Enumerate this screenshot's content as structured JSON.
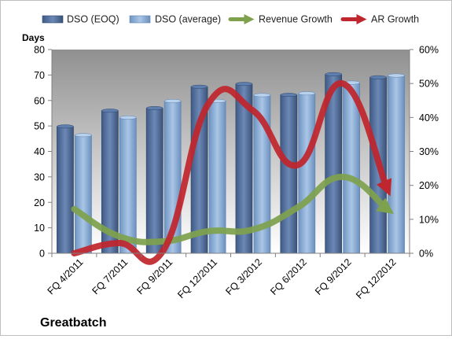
{
  "chart_data": {
    "type": "bar",
    "title": "Greatbatch",
    "ylabel": "Days",
    "xlabel": "",
    "categories": [
      "FQ 4/2011",
      "FQ 7/2011",
      "FQ 9/2011",
      "FQ 12/2011",
      "FQ 3/2012",
      "FQ 6/2012",
      "FQ 9/2012",
      "FQ 12/2012"
    ],
    "ylim": [
      0,
      80
    ],
    "y_ticks": [
      0,
      10,
      20,
      30,
      40,
      50,
      60,
      70,
      80
    ],
    "y2lim": [
      0,
      0.6
    ],
    "y2_ticks": [
      "0%",
      "10%",
      "20%",
      "30%",
      "40%",
      "50%",
      "60%"
    ],
    "legend_position": "top",
    "grid": false,
    "series": [
      {
        "name": "DSO (EOQ)",
        "type": "bar",
        "axis": "left",
        "color": "#4f6d9e",
        "values": [
          49.8,
          56.0,
          57.0,
          65.4,
          66.5,
          62.2,
          70.3,
          69.1
        ]
      },
      {
        "name": "DSO (average)",
        "type": "bar",
        "axis": "left",
        "color": "#8fb2db",
        "values": [
          46.4,
          53.3,
          59.8,
          59.8,
          62.1,
          62.8,
          67.0,
          69.8
        ]
      },
      {
        "name": "Revenue Growth",
        "type": "line",
        "axis": "right",
        "color": "#7ea14e",
        "values": [
          0.13,
          0.05,
          0.035,
          0.065,
          0.07,
          0.135,
          0.225,
          0.13
        ]
      },
      {
        "name": "AR Growth",
        "type": "line",
        "axis": "right",
        "color": "#c0262d",
        "values": [
          0.0,
          0.03,
          0.01,
          0.44,
          0.42,
          0.26,
          0.5,
          0.19
        ]
      }
    ]
  }
}
